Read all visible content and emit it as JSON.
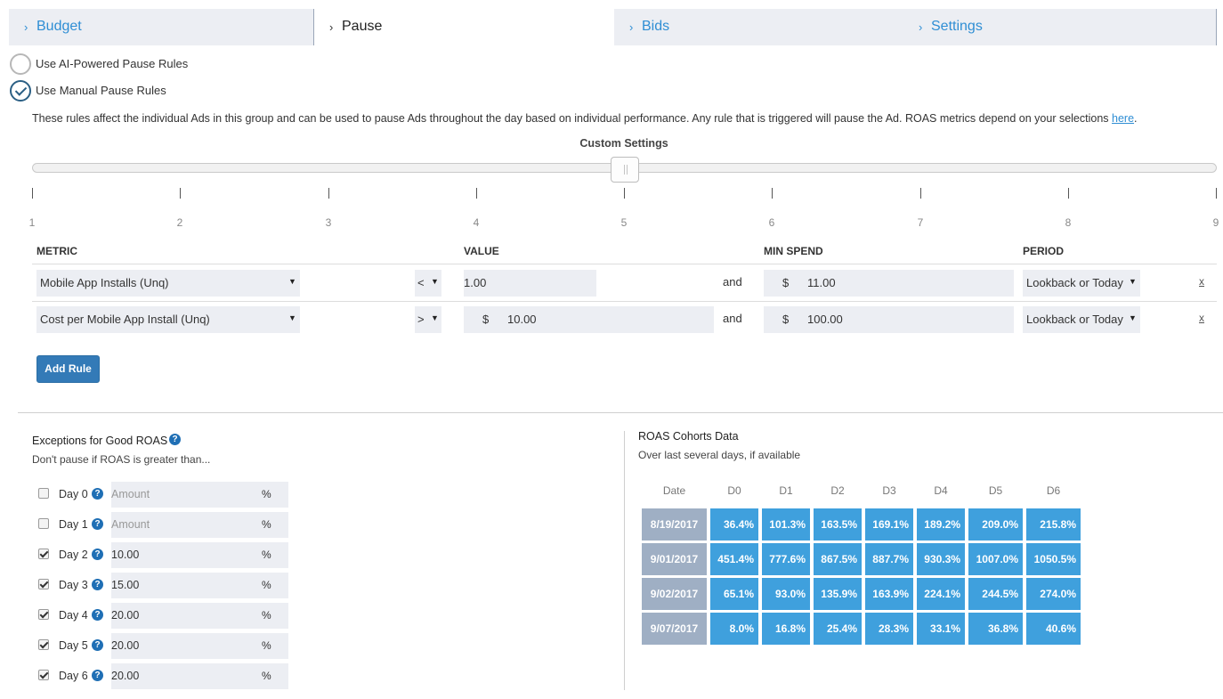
{
  "tabs": [
    {
      "label": "Budget",
      "active": false
    },
    {
      "label": "Pause",
      "active": true
    },
    {
      "label": "Bids",
      "active": false
    },
    {
      "label": "Settings",
      "active": false
    }
  ],
  "options": {
    "ai_label": "Use AI-Powered Pause Rules",
    "manual_label": "Use Manual Pause Rules",
    "selected": "manual"
  },
  "description": {
    "text": "These rules affect the individual Ads in this group and can be used to pause Ads throughout the day based on individual performance. Any rule that is triggered will pause the Ad. ROAS metrics depend on your selections ",
    "link": "here",
    "end": "."
  },
  "slider": {
    "title": "Custom Settings",
    "ticks": [
      "1",
      "2",
      "3",
      "4",
      "5",
      "6",
      "7",
      "8",
      "9"
    ],
    "value": 5
  },
  "rules": {
    "headers": {
      "metric": "METRIC",
      "value": "VALUE",
      "min_spend": "MIN SPEND",
      "period": "PERIOD"
    },
    "rows": [
      {
        "metric": "Mobile App Installs (Unq)",
        "operator": "<",
        "value_prefix": "",
        "value": "1.00",
        "and": "and",
        "spend_prefix": "$",
        "min_spend": "11.00",
        "period": "Lookback or Today",
        "delete": "x"
      },
      {
        "metric": "Cost per Mobile App Install (Unq)",
        "operator": ">",
        "value_prefix": "$",
        "value": "10.00",
        "and": "and",
        "spend_prefix": "$",
        "min_spend": "100.00",
        "period": "Lookback or Today",
        "delete": "x"
      }
    ],
    "add_label": "Add Rule"
  },
  "exceptions": {
    "title": "Exceptions for Good ROAS",
    "subtitle": "Don't pause if ROAS is greater than...",
    "days": [
      {
        "label": "Day 0",
        "checked": false,
        "value": "Amount",
        "placeholder": true,
        "unit": "%"
      },
      {
        "label": "Day 1",
        "checked": false,
        "value": "Amount",
        "placeholder": true,
        "unit": "%"
      },
      {
        "label": "Day 2",
        "checked": true,
        "value": "10.00",
        "placeholder": false,
        "unit": "%"
      },
      {
        "label": "Day 3",
        "checked": true,
        "value": "15.00",
        "placeholder": false,
        "unit": "%"
      },
      {
        "label": "Day 4",
        "checked": true,
        "value": "20.00",
        "placeholder": false,
        "unit": "%"
      },
      {
        "label": "Day 5",
        "checked": true,
        "value": "20.00",
        "placeholder": false,
        "unit": "%"
      },
      {
        "label": "Day 6",
        "checked": true,
        "value": "20.00",
        "placeholder": false,
        "unit": "%"
      }
    ]
  },
  "cohorts": {
    "title": "ROAS Cohorts Data",
    "subtitle": "Over last several days, if available",
    "headers": [
      "Date",
      "D0",
      "D1",
      "D2",
      "D3",
      "D4",
      "D5",
      "D6"
    ],
    "rows": [
      [
        "8/19/2017",
        "36.4%",
        "101.3%",
        "163.5%",
        "169.1%",
        "189.2%",
        "209.0%",
        "215.8%"
      ],
      [
        "9/01/2017",
        "451.4%",
        "777.6%",
        "867.5%",
        "887.7%",
        "930.3%",
        "1007.0%",
        "1050.5%"
      ],
      [
        "9/02/2017",
        "65.1%",
        "93.0%",
        "135.9%",
        "163.9%",
        "224.1%",
        "244.5%",
        "274.0%"
      ],
      [
        "9/07/2017",
        "8.0%",
        "16.8%",
        "25.4%",
        "28.3%",
        "33.1%",
        "36.8%",
        "40.6%"
      ]
    ]
  },
  "colors": {
    "accent": "#2f8ed4",
    "button": "#337ab7",
    "cell": "#3fa0dd",
    "date_cell": "#9fafc4"
  },
  "icons": {
    "help": "question-circle-icon",
    "tab": "chevron-right-icon",
    "dropdown": "caret-down-icon"
  }
}
